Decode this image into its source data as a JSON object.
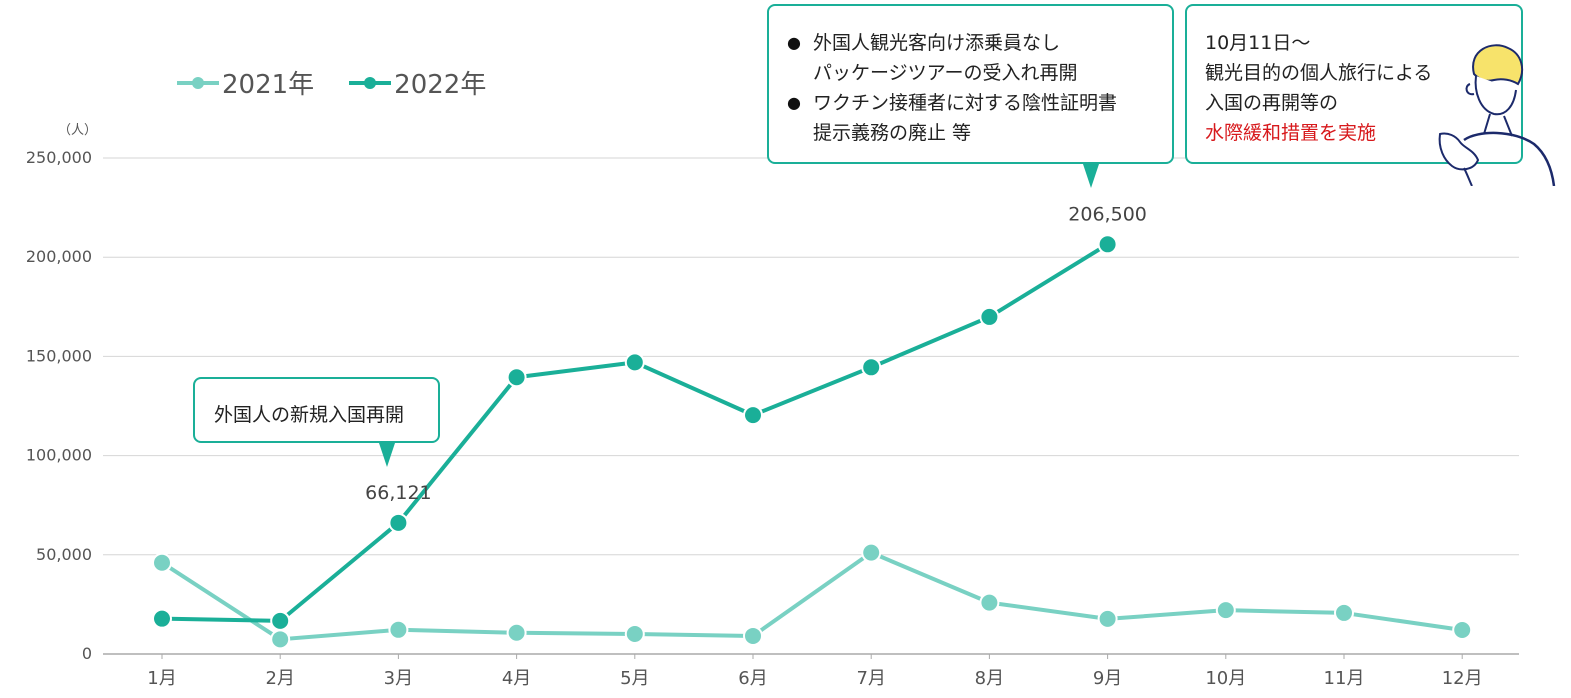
{
  "chart_data": {
    "type": "line",
    "categories": [
      "1月",
      "2月",
      "3月",
      "4月",
      "5月",
      "6月",
      "7月",
      "8月",
      "9月",
      "10月",
      "11月",
      "12月"
    ],
    "series": [
      {
        "name": "2021年",
        "color": "#79d1c3",
        "values": [
          46000,
          7400,
          12200,
          10700,
          10100,
          9100,
          51100,
          25900,
          17700,
          22100,
          20700,
          12100
        ]
      },
      {
        "name": "2022年",
        "color": "#1aaf98",
        "values": [
          17800,
          16700,
          66121,
          139500,
          147000,
          120400,
          144500,
          169900,
          206500,
          null,
          null,
          null
        ]
      }
    ],
    "ylim": [
      0,
      250000
    ],
    "yticks": [
      "0",
      "50,000",
      "100,000",
      "150,000",
      "200,000",
      "250,000"
    ],
    "ylabel": "（人）",
    "data_labels": [
      {
        "series": 1,
        "index": 2,
        "text": "66,121"
      },
      {
        "series": 1,
        "index": 8,
        "text": "206,500"
      }
    ],
    "grid": true,
    "legend_position": "top-left"
  },
  "callouts": {
    "first": "外国人の新規入国再開",
    "second_items": [
      "外国人観光客向け添乗員なし\nパッケージツアーの受入れ再開",
      "ワクチン接種者に対する陰性証明書\n提示義務の廃止 等"
    ],
    "bullet": "●",
    "third_lines": [
      "10月11日～",
      "観光目的の個人旅行による",
      "入国の再開等の"
    ],
    "third_highlight": "水際緩和措置を実施"
  },
  "colors": {
    "accent": "#1aaf98",
    "light": "#79d1c3",
    "highlight": "#d7191c"
  },
  "icons": {
    "character": "man-pointing-icon"
  }
}
